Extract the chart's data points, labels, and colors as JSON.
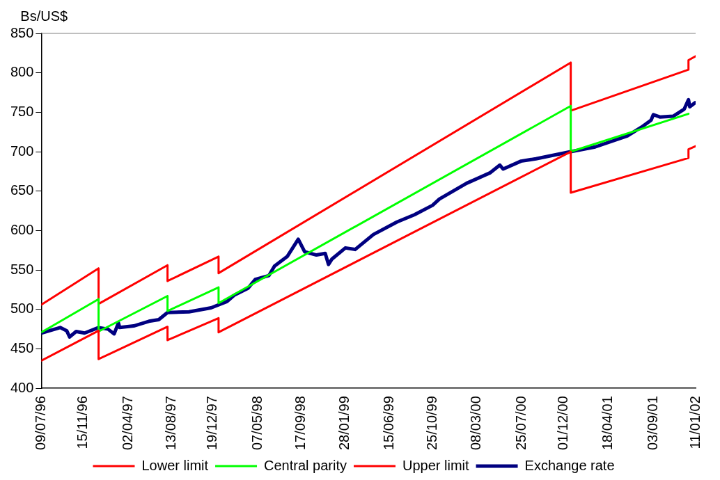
{
  "chart_data": {
    "type": "line",
    "ylabel": "Bs/US$",
    "xlim": [
      "1996-07-09",
      "2002-01-11"
    ],
    "ylim": [
      400,
      850
    ],
    "yticks": [
      400,
      450,
      500,
      550,
      600,
      650,
      700,
      750,
      800,
      850
    ],
    "xticks": [
      {
        "value": "1996-07-09",
        "label": "09/07/96"
      },
      {
        "value": "1996-11-15",
        "label": "15/11/96"
      },
      {
        "value": "1997-04-02",
        "label": "02/04/97"
      },
      {
        "value": "1997-08-13",
        "label": "13/08/97"
      },
      {
        "value": "1997-12-19",
        "label": "19/12/97"
      },
      {
        "value": "1998-05-07",
        "label": "07/05/98"
      },
      {
        "value": "1998-09-17",
        "label": "17/09/98"
      },
      {
        "value": "1999-01-28",
        "label": "28/01/99"
      },
      {
        "value": "1999-06-15",
        "label": "15/06/99"
      },
      {
        "value": "1999-10-25",
        "label": "25/10/99"
      },
      {
        "value": "2000-03-08",
        "label": "08/03/00"
      },
      {
        "value": "2000-07-25",
        "label": "25/07/00"
      },
      {
        "value": "2000-12-01",
        "label": "01/12/00"
      },
      {
        "value": "2001-04-18",
        "label": "18/04/01"
      },
      {
        "value": "2001-09-03",
        "label": "03/09/01"
      },
      {
        "value": "2002-01-11",
        "label": "11/01/02"
      }
    ],
    "grid": false,
    "legend": "bottom",
    "marker": "none",
    "line_style": "solid",
    "series": [
      {
        "name": "Lower limit",
        "color": "#ff0000",
        "x": [
          "1996-07-09",
          "1997-01-01",
          "1997-01-01",
          "1997-08-01",
          "1997-08-01",
          "1998-01-05",
          "1998-01-05",
          "2000-12-23",
          "2000-12-23",
          "2001-12-20",
          "2001-12-20",
          "2002-01-11"
        ],
        "values": [
          435,
          473,
          437,
          478,
          461,
          489,
          471,
          700,
          648,
          692,
          703,
          707
        ]
      },
      {
        "name": "Central parity",
        "color": "#00ff00",
        "x": [
          "1996-07-09",
          "1997-01-01",
          "1997-01-01",
          "1997-08-01",
          "1997-08-01",
          "1998-01-05",
          "1998-01-05",
          "2000-12-23",
          "2000-12-23",
          "2001-12-20"
        ],
        "values": [
          471,
          513,
          472,
          517,
          498,
          528,
          508,
          758,
          700,
          748
        ]
      },
      {
        "name": "Upper limit",
        "color": "#ff0000",
        "x": [
          "1996-07-09",
          "1997-01-01",
          "1997-01-01",
          "1997-08-01",
          "1997-08-01",
          "1998-01-05",
          "1998-01-05",
          "2000-12-23",
          "2000-12-23",
          "2001-12-20",
          "2001-12-20",
          "2002-01-11"
        ],
        "values": [
          506,
          552,
          507,
          556,
          536,
          567,
          546,
          813,
          752,
          804,
          816,
          821
        ]
      },
      {
        "name": "Exchange rate",
        "color": "#000080",
        "x": [
          "1996-07-09",
          "1996-09-05",
          "1996-09-25",
          "1996-10-04",
          "1996-10-24",
          "1996-11-19",
          "1997-01-01",
          "1997-01-30",
          "1997-02-18",
          "1997-03-03",
          "1997-03-07",
          "1997-04-19",
          "1997-06-05",
          "1997-07-05",
          "1997-08-01",
          "1997-10-06",
          "1997-12-13",
          "1998-01-31",
          "1998-02-22",
          "1998-04-06",
          "1998-04-28",
          "1998-06-09",
          "1998-06-26",
          "1998-08-04",
          "1998-09-07",
          "1998-09-27",
          "1998-11-02",
          "1998-11-29",
          "1998-12-09",
          "1998-12-20",
          "1999-01-30",
          "1999-03-01",
          "1999-04-26",
          "1999-07-08",
          "1999-08-30",
          "1999-10-25",
          "1999-11-15",
          "2000-02-07",
          "2000-04-18",
          "2000-05-19",
          "2000-05-29",
          "2000-07-23",
          "2000-09-07",
          "2000-12-23",
          "2001-03-08",
          "2001-06-15",
          "2001-07-28",
          "2001-08-27",
          "2001-09-03",
          "2001-09-23",
          "2001-11-03",
          "2001-12-07",
          "2001-12-20",
          "2001-12-24",
          "2002-01-09"
        ],
        "values": [
          470,
          477,
          473,
          465,
          472,
          470,
          477,
          475,
          469,
          483,
          477,
          479,
          485,
          487,
          496,
          497,
          502,
          510,
          518,
          527,
          538,
          543,
          555,
          567,
          589,
          573,
          569,
          571,
          557,
          564,
          578,
          576,
          595,
          611,
          620,
          632,
          640,
          660,
          673,
          683,
          678,
          688,
          691,
          700,
          706,
          720,
          731,
          740,
          747,
          744,
          745,
          754,
          766,
          757,
          762
        ]
      }
    ]
  }
}
